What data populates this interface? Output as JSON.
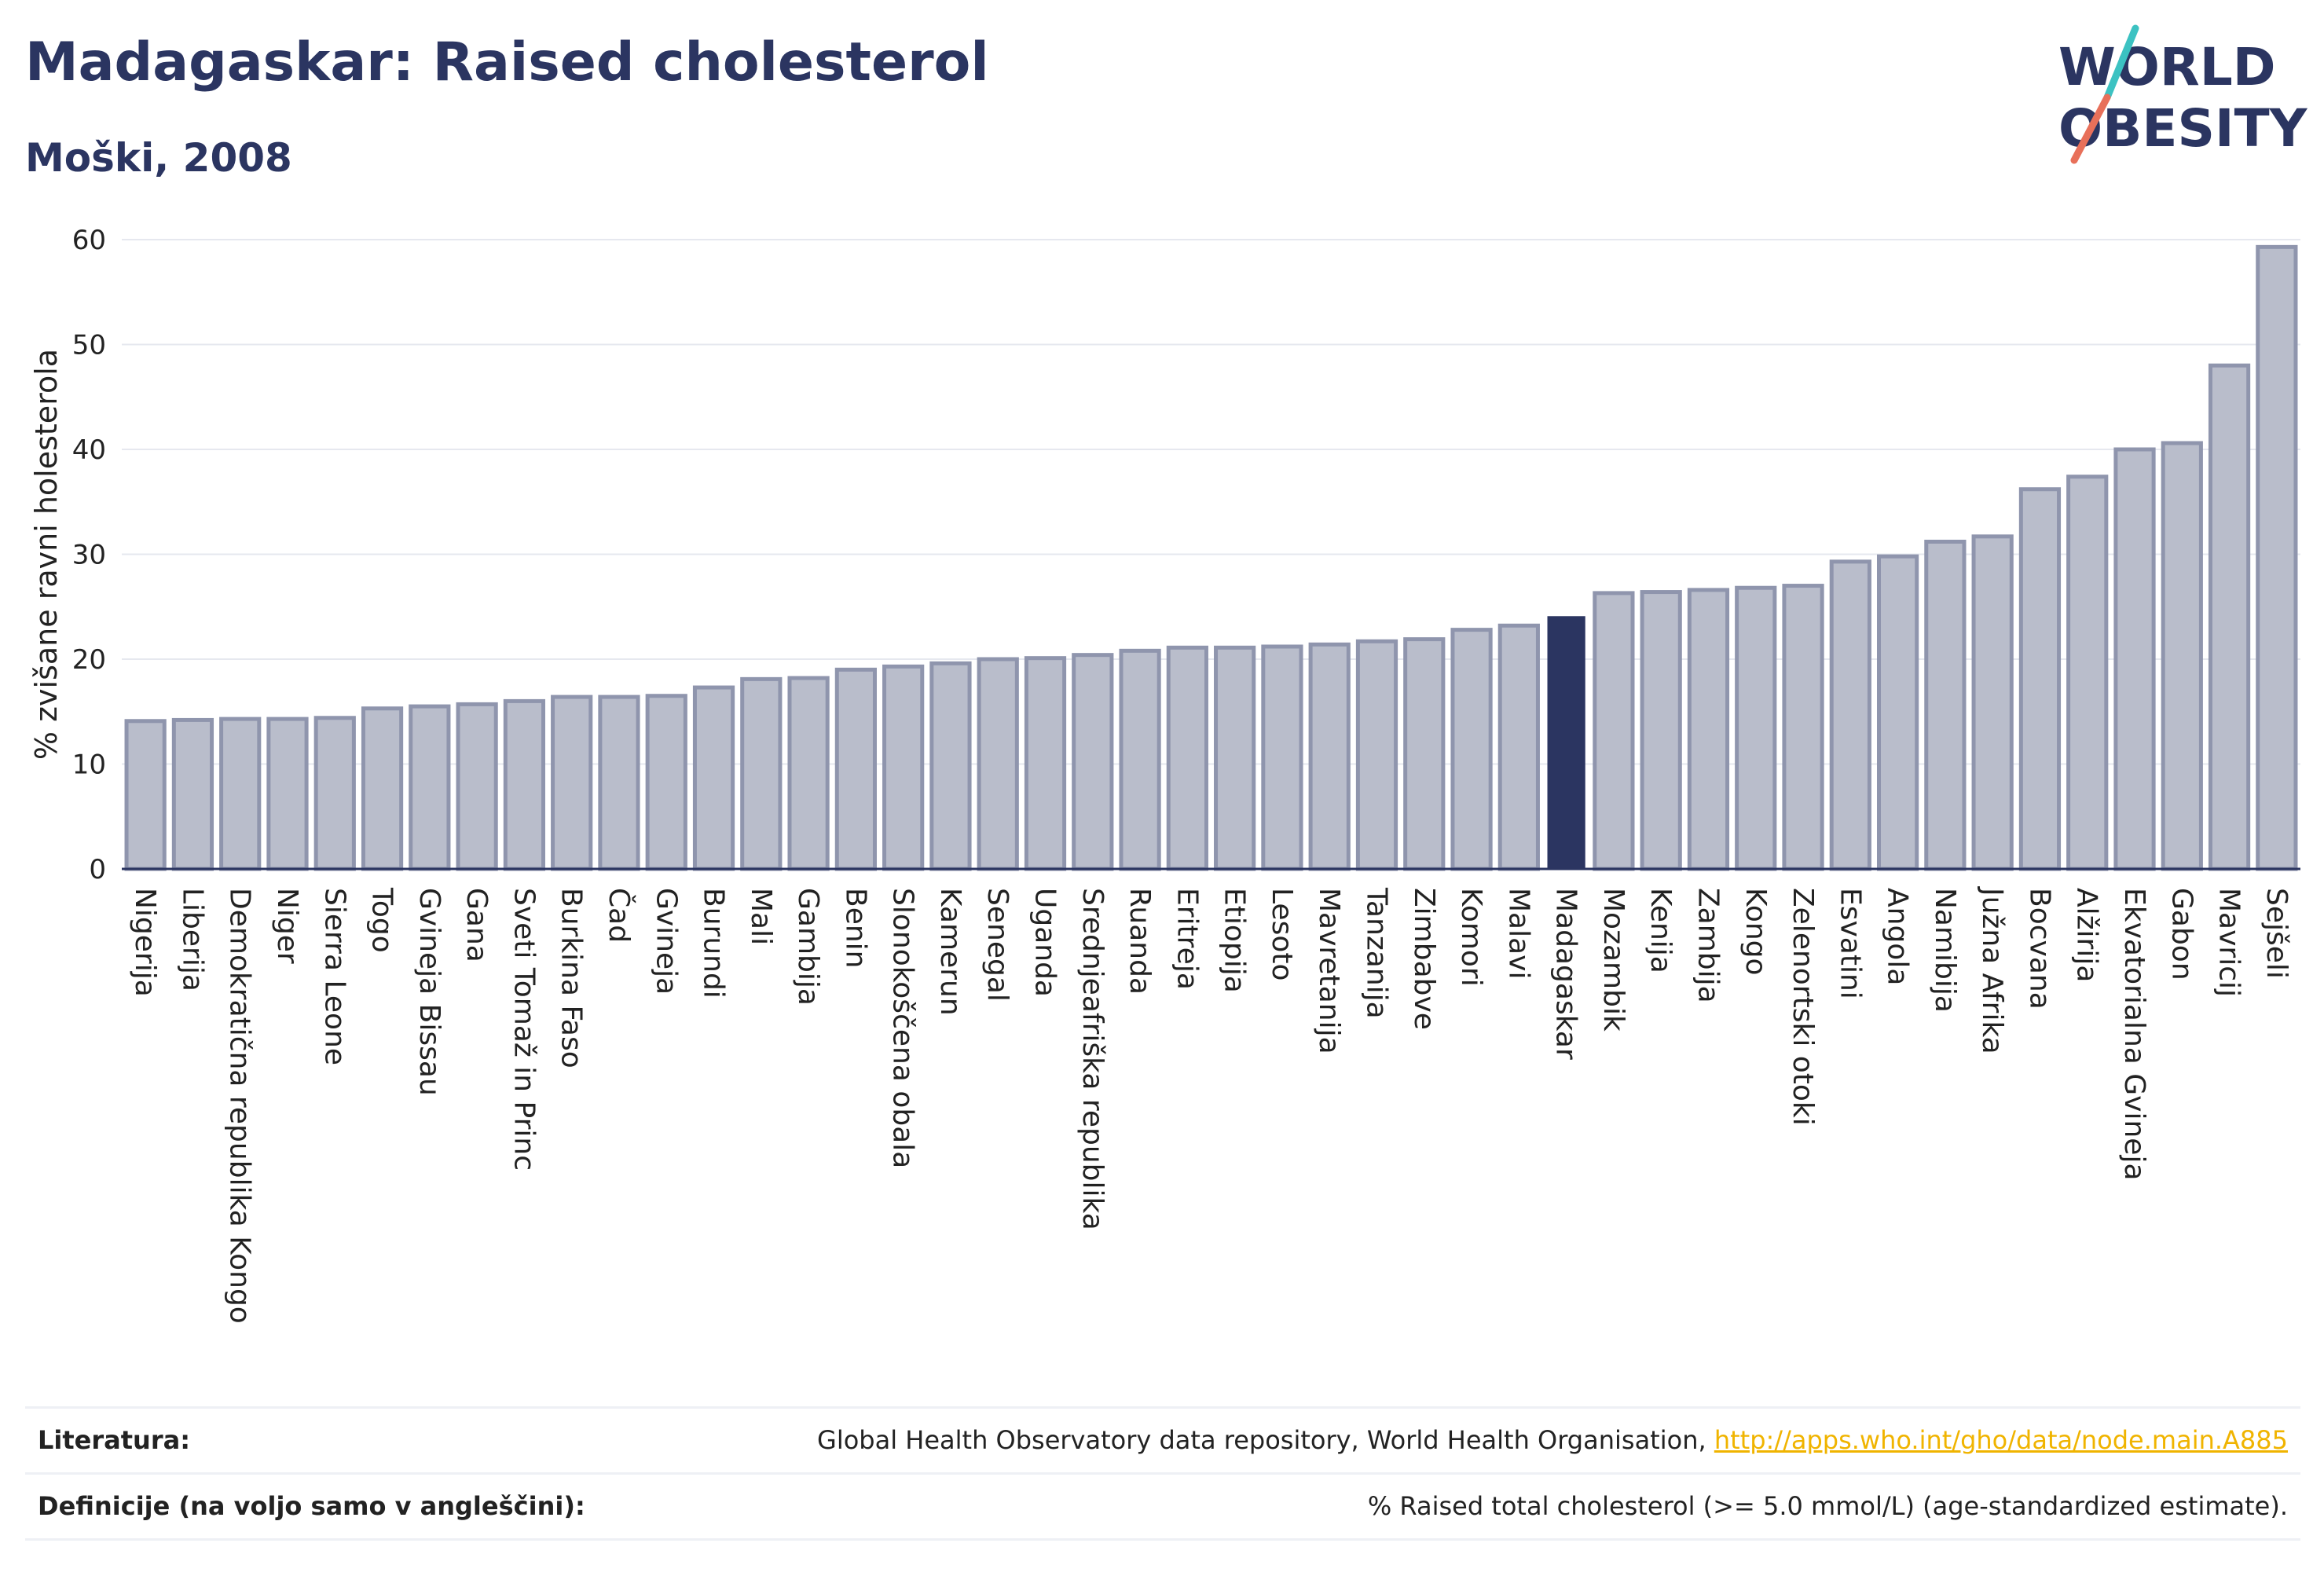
{
  "title": "Madagaskar: Raised cholesterol",
  "subtitle": "Moški, 2008",
  "logo": {
    "line1": "WORLD",
    "line2": "OBESITY"
  },
  "footer": {
    "source_label": "Literatura:",
    "source_text": "Global Health Observatory data repository, World Health Organisation, ",
    "source_link": "http://apps.who.int/gho/data/node.main.A885",
    "definition_label": "Definicije (na voljo samo v angleščini):",
    "definition_text": "% Raised total cholesterol (>= 5.0 mmol/L) (age-standardized estimate)."
  },
  "colors": {
    "bar": "#b9bdcb",
    "bar_stroke": "#8f95ad",
    "highlight": "#2b3561",
    "grid": "#e6e8ef"
  },
  "chart_data": {
    "type": "bar",
    "ylabel": "% zvišane ravni holesterola",
    "ylim": [
      0,
      60
    ],
    "yticks": [
      0,
      10,
      20,
      30,
      40,
      50,
      60
    ],
    "grid": true,
    "highlight": "Madagaskar",
    "categories": [
      "Nigerija",
      "Liberija",
      "Demokratična republika Kongo",
      "Niger",
      "Sierra Leone",
      "Togo",
      "Gvineja Bissau",
      "Gana",
      "Sveti Tomaž in Princ",
      "Burkina Faso",
      "Čad",
      "Gvineja",
      "Burundi",
      "Mali",
      "Gambija",
      "Benin",
      "Slonokoščena obala",
      "Kamerun",
      "Senegal",
      "Uganda",
      "Srednjeafriška republika",
      "Ruanda",
      "Eritreja",
      "Etiopija",
      "Lesoto",
      "Mavretanija",
      "Tanzanija",
      "Zimbabve",
      "Komori",
      "Malavi",
      "Madagaskar",
      "Mozambik",
      "Kenija",
      "Zambija",
      "Kongo",
      "Zelenortski otoki",
      "Esvatini",
      "Angola",
      "Namibija",
      "Južna Afrika",
      "Bocvana",
      "Alžirija",
      "Ekvatorialna Gvineja",
      "Gabon",
      "Mavricij",
      "Sejšeli"
    ],
    "values": [
      14.1,
      14.2,
      14.3,
      14.3,
      14.4,
      15.3,
      15.5,
      15.7,
      16.0,
      16.4,
      16.4,
      16.5,
      17.3,
      18.1,
      18.2,
      19.0,
      19.3,
      19.6,
      20.0,
      20.1,
      20.4,
      20.8,
      21.1,
      21.1,
      21.2,
      21.4,
      21.7,
      21.9,
      22.8,
      23.2,
      24.1,
      26.3,
      26.4,
      26.6,
      26.8,
      27.0,
      29.3,
      29.8,
      31.2,
      31.7,
      36.2,
      37.4,
      40.0,
      40.6,
      48.0,
      59.3
    ]
  }
}
